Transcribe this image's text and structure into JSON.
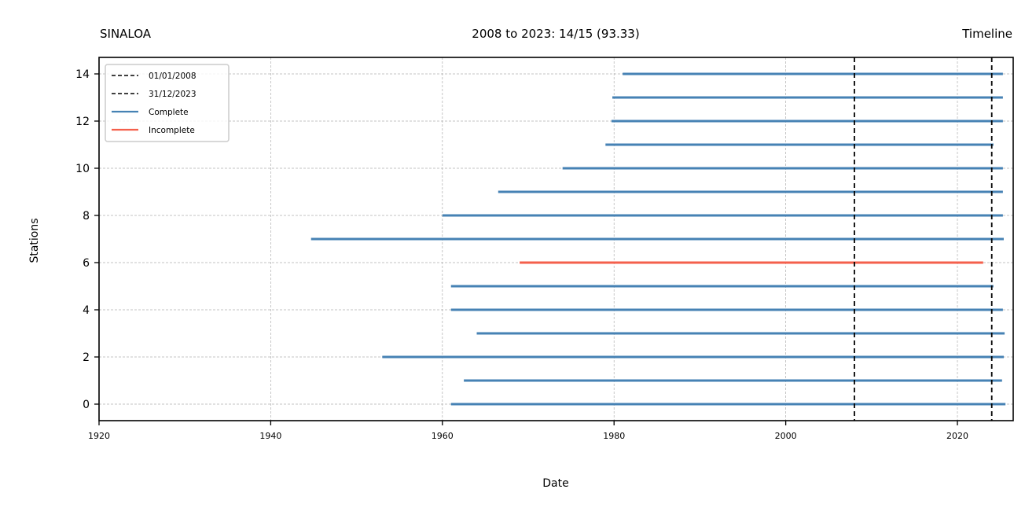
{
  "chart_data": {
    "type": "timeline",
    "title_left": "SINALOA",
    "title_center": "2008 to 2023: 14/15 (93.33)",
    "title_right": "Timeline",
    "xlabel": "Date",
    "ylabel": "Stations",
    "xlim": [
      1920,
      2026.5
    ],
    "ylim": [
      -0.7,
      14.7
    ],
    "xticks": [
      1920,
      1940,
      1960,
      1980,
      2000,
      2020
    ],
    "yticks": [
      0,
      2,
      4,
      6,
      8,
      10,
      12,
      14
    ],
    "grid": true,
    "colors": {
      "complete": "#4682b4",
      "incomplete": "#f4604c",
      "reference": "#000000",
      "grid": "#b0b0b0"
    },
    "reference_lines": [
      {
        "label": "01/01/2008",
        "x": 2008.0
      },
      {
        "label": "31/12/2023",
        "x": 2024.0
      }
    ],
    "legend": {
      "position": "top-left",
      "entries": [
        {
          "label": "01/01/2008",
          "style": "dashed",
          "color": "#000000"
        },
        {
          "label": "31/12/2023",
          "style": "dashed",
          "color": "#000000"
        },
        {
          "label": "Complete",
          "style": "solid",
          "color": "#4682b4"
        },
        {
          "label": "Incomplete",
          "style": "solid",
          "color": "#f4604c"
        }
      ]
    },
    "stations": [
      {
        "y": 0,
        "start": 1961.0,
        "end": 2025.6,
        "status": "complete"
      },
      {
        "y": 1,
        "start": 1962.5,
        "end": 2025.2,
        "status": "complete"
      },
      {
        "y": 2,
        "start": 1953.0,
        "end": 2025.4,
        "status": "complete"
      },
      {
        "y": 3,
        "start": 1964.0,
        "end": 2025.5,
        "status": "complete"
      },
      {
        "y": 4,
        "start": 1961.0,
        "end": 2025.3,
        "status": "complete"
      },
      {
        "y": 5,
        "start": 1961.0,
        "end": 2024.2,
        "status": "complete"
      },
      {
        "y": 6,
        "start": 1969.0,
        "end": 2023.0,
        "status": "incomplete"
      },
      {
        "y": 7,
        "start": 1944.7,
        "end": 2025.4,
        "status": "complete"
      },
      {
        "y": 8,
        "start": 1960.0,
        "end": 2025.3,
        "status": "complete"
      },
      {
        "y": 9,
        "start": 1966.5,
        "end": 2025.3,
        "status": "complete"
      },
      {
        "y": 10,
        "start": 1974.0,
        "end": 2025.3,
        "status": "complete"
      },
      {
        "y": 11,
        "start": 1979.0,
        "end": 2024.2,
        "status": "complete"
      },
      {
        "y": 12,
        "start": 1979.7,
        "end": 2025.3,
        "status": "complete"
      },
      {
        "y": 13,
        "start": 1979.8,
        "end": 2025.3,
        "status": "complete"
      },
      {
        "y": 14,
        "start": 1981.0,
        "end": 2025.3,
        "status": "complete"
      }
    ]
  }
}
